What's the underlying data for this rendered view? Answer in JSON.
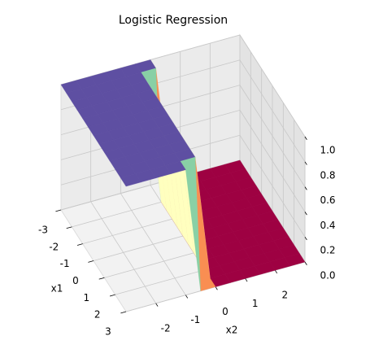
{
  "chart_data": {
    "type": "surface",
    "title": "Logistic Regression",
    "xlabel": "x1",
    "ylabel": "x2",
    "colormap": "Spectral",
    "x": [
      -3,
      -2.5,
      -2,
      -1.5,
      -1,
      -0.5,
      0,
      0.5,
      1,
      1.5,
      2,
      2.5,
      3
    ],
    "y": [
      -3,
      -2.5,
      -2,
      -1.5,
      -1,
      -0.5,
      0,
      0.5,
      1,
      1.5,
      2,
      2.5,
      3
    ],
    "z": [
      [
        1,
        1,
        1,
        1,
        1,
        1,
        1,
        0,
        0,
        0,
        0,
        0,
        0
      ],
      [
        1,
        1,
        1,
        1,
        1,
        1,
        1,
        0,
        0,
        0,
        0,
        0,
        0
      ],
      [
        1,
        1,
        1,
        1,
        1,
        1,
        0,
        0,
        0,
        0,
        0,
        0,
        0
      ],
      [
        1,
        1,
        1,
        1,
        1,
        1,
        0,
        0,
        0,
        0,
        0,
        0,
        0
      ],
      [
        1,
        1,
        1,
        1,
        1,
        1,
        0,
        0,
        0,
        0,
        0,
        0,
        0
      ],
      [
        1,
        1,
        1,
        1,
        1,
        1,
        0,
        0,
        0,
        0,
        0,
        0,
        0
      ],
      [
        1,
        1,
        1,
        1,
        1,
        1,
        0,
        0,
        0,
        0,
        0,
        0,
        0
      ],
      [
        1,
        1,
        1,
        1,
        1,
        1,
        0,
        0,
        0,
        0,
        0,
        0,
        0
      ],
      [
        1,
        1,
        1,
        1,
        1,
        1,
        0,
        0,
        0,
        0,
        0,
        0,
        0
      ],
      [
        1,
        1,
        1,
        1,
        1,
        1,
        0,
        0,
        0,
        0,
        0,
        0,
        0
      ],
      [
        1,
        1,
        1,
        1,
        1,
        1,
        0,
        0,
        0,
        0,
        0,
        0,
        0
      ],
      [
        1,
        1,
        1,
        1,
        1,
        1,
        0,
        0,
        0,
        0,
        0,
        0,
        0
      ],
      [
        1,
        1,
        1,
        1,
        1,
        0,
        0,
        0,
        0,
        0,
        0,
        0,
        0
      ]
    ],
    "xlim": [
      -3,
      3
    ],
    "ylim": [
      -3,
      3
    ],
    "zlim": [
      0,
      1
    ],
    "xticks": [
      -3,
      -2,
      -1,
      0,
      1,
      2,
      3
    ],
    "yticks": [
      -2,
      -1,
      0,
      1,
      2
    ],
    "zticks": [
      {
        "value": 0,
        "label": "0.0"
      },
      {
        "value": 0.2,
        "label": "0.2"
      },
      {
        "value": 0.4,
        "label": "0.4"
      },
      {
        "value": 0.6,
        "label": "0.6"
      },
      {
        "value": 0.8,
        "label": "0.8"
      },
      {
        "value": 1,
        "label": "1.0"
      }
    ],
    "grid": true
  }
}
